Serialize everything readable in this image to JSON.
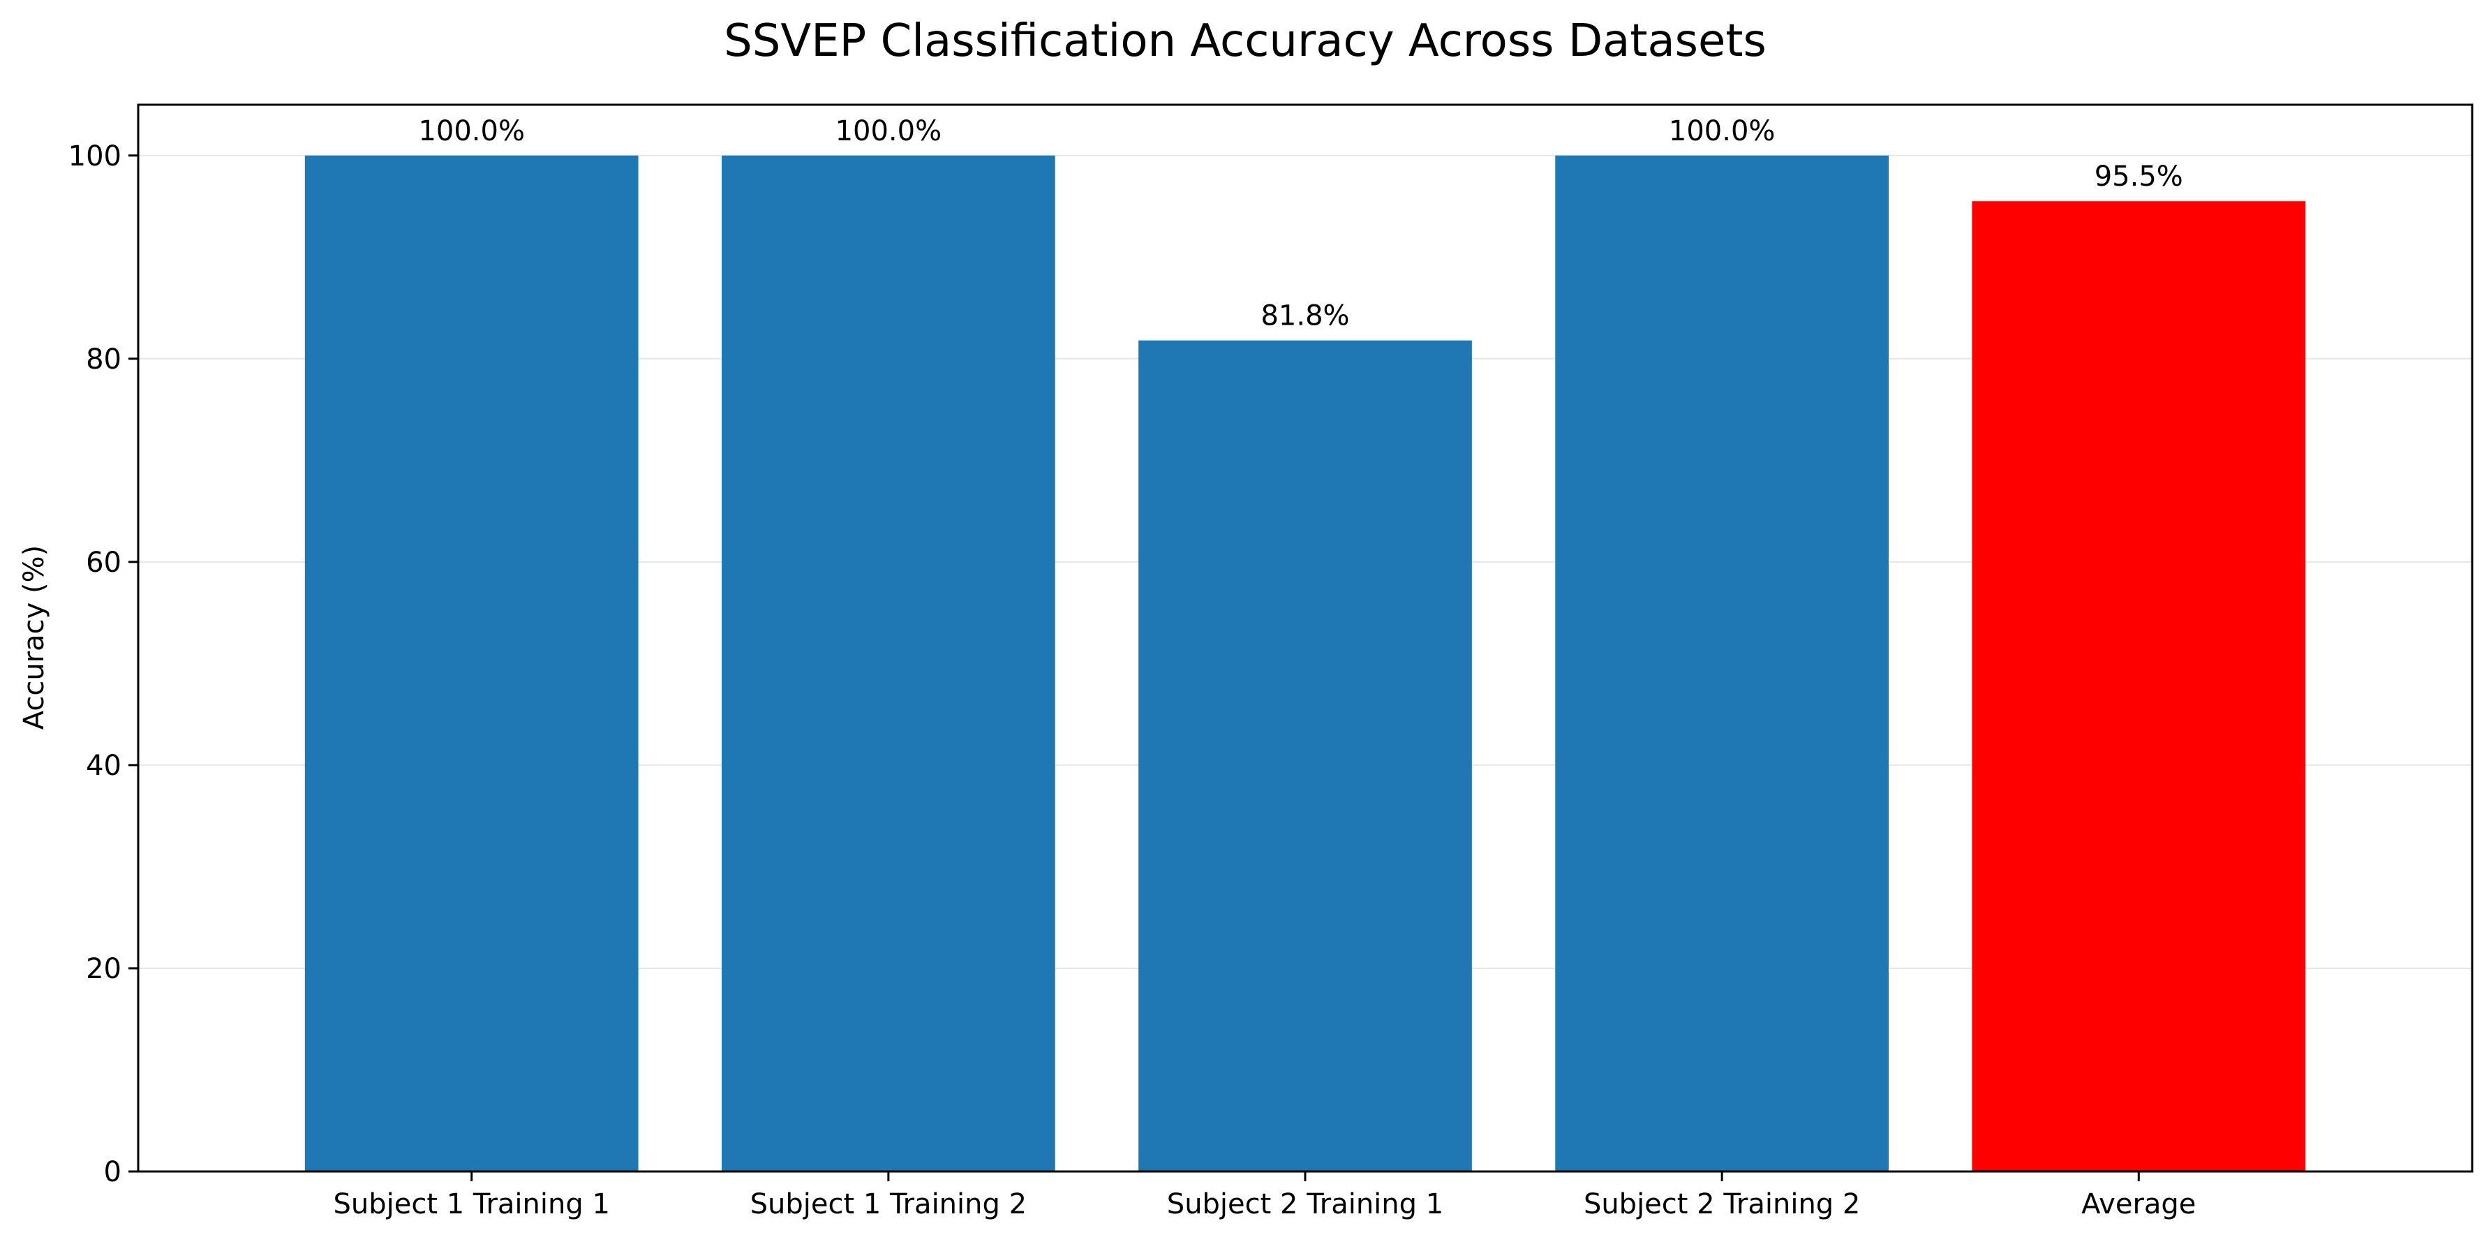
{
  "chart_data": {
    "type": "bar",
    "title": "SSVEP Classification Accuracy Across Datasets",
    "xlabel": "",
    "ylabel": "Accuracy (%)",
    "categories": [
      "Subject 1 Training 1",
      "Subject 1 Training 2",
      "Subject 2 Training 1",
      "Subject 2 Training 2",
      "Average"
    ],
    "values": [
      100.0,
      100.0,
      81.8,
      100.0,
      95.5
    ],
    "data_labels": [
      "100.0%",
      "100.0%",
      "81.8%",
      "100.0%",
      "95.5%"
    ],
    "bar_colors": [
      "#1f77b4",
      "#1f77b4",
      "#1f77b4",
      "#1f77b4",
      "#ff0000"
    ],
    "ylim": [
      0,
      105
    ],
    "yticks": [
      0,
      20,
      40,
      60,
      80,
      100
    ],
    "ytick_labels": [
      "0",
      "20",
      "40",
      "60",
      "80",
      "100"
    ],
    "grid": "y-axis only",
    "legend": "none"
  }
}
